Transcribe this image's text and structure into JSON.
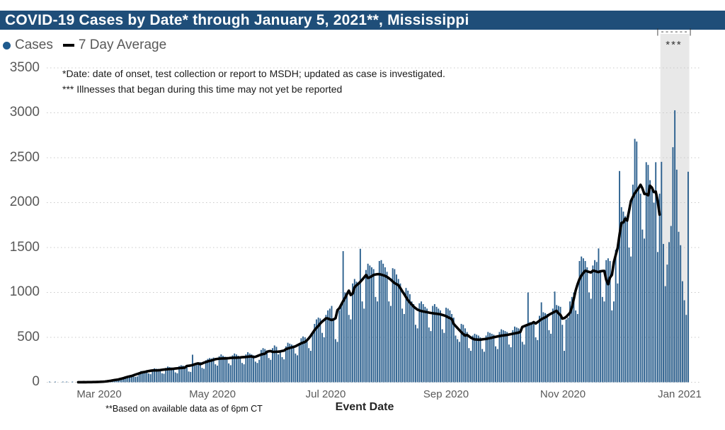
{
  "title_bar": {
    "text": "COVID-19 Cases by Date* through January 5, 2021**, Mississippi"
  },
  "legend": {
    "cases_label": "Cases",
    "avg_label": "7 Day Average"
  },
  "notes": {
    "date_note": "*Date: date of onset, test collection or report to MSDH; updated as case is investigated.",
    "reporting_note": "*** Illnesses that began during this time may not yet be reported",
    "data_note": "**Based on available data as of 6pm CT",
    "shade_bracket": "|------|",
    "shade_marker": "***"
  },
  "x_axis": {
    "title": "Event Date",
    "tick_labels": [
      "Mar 2020",
      "May 2020",
      "Jul 2020",
      "Sep 2020",
      "Nov 2020",
      "Jan 2021"
    ]
  },
  "y_axis": {
    "tick_labels": [
      "3500",
      "3000",
      "2500",
      "2000",
      "1500",
      "1000",
      "500",
      "0"
    ]
  },
  "colors": {
    "bar": "#2D618F",
    "avg_line": "#000000",
    "title_bg": "#1F4E79",
    "shade": "#E8E8E8",
    "gridline": "#C9C9C9",
    "legend_dot": "#1F5B8E",
    "axis_text": "#595959"
  },
  "chart_data": {
    "type": "bar",
    "title": "COVID-19 Cases by Date* through January 5, 2021**, Mississippi",
    "xlabel": "Event Date",
    "ylabel": "Cases",
    "ylim": [
      0,
      3500
    ],
    "y_ticks": [
      0,
      500,
      1000,
      1500,
      2000,
      2500,
      3000,
      3500
    ],
    "grid": "dotted-horizontal",
    "legend_position": "top-left",
    "x_start_date": "2020-02-05",
    "x_end_date": "2021-01-05",
    "x_tick_dates": [
      "2020-03-01",
      "2020-05-01",
      "2020-07-01",
      "2020-09-01",
      "2020-11-01",
      "2021-01-01"
    ],
    "series": [
      {
        "name": "Cases",
        "type": "bar",
        "daily_values": [
          1,
          0,
          0,
          1,
          0,
          0,
          0,
          2,
          0,
          1,
          0,
          0,
          1,
          0,
          0,
          2,
          1,
          0,
          3,
          1,
          0,
          2,
          1,
          3,
          2,
          2,
          4,
          5,
          6,
          8,
          10,
          9,
          12,
          20,
          28,
          30,
          35,
          38,
          30,
          35,
          55,
          68,
          72,
          80,
          85,
          60,
          65,
          110,
          125,
          120,
          128,
          135,
          98,
          90,
          145,
          155,
          150,
          148,
          140,
          100,
          95,
          160,
          175,
          170,
          165,
          155,
          110,
          100,
          180,
          190,
          185,
          180,
          170,
          120,
          115,
          307,
          210,
          205,
          215,
          225,
          160,
          150,
          245,
          260,
          270,
          265,
          275,
          200,
          185,
          290,
          310,
          295,
          285,
          280,
          210,
          190,
          300,
          320,
          310,
          295,
          285,
          215,
          200,
          310,
          335,
          320,
          310,
          300,
          230,
          215,
          250,
          360,
          380,
          370,
          355,
          270,
          250,
          380,
          410,
          395,
          310,
          355,
          280,
          255,
          400,
          440,
          430,
          420,
          410,
          320,
          300,
          430,
          490,
          510,
          500,
          480,
          380,
          350,
          560,
          650,
          700,
          720,
          710,
          550,
          500,
          750,
          800,
          820,
          850,
          700,
          480,
          450,
          800,
          880,
          1460,
          1000,
          980,
          750,
          700,
          1100,
          1150,
          1120,
          1100,
          1486,
          900,
          820,
          1250,
          1320,
          1300,
          1280,
          1260,
          950,
          900,
          1350,
          1360,
          1320,
          1280,
          1230,
          900,
          850,
          1270,
          1260,
          1200,
          1150,
          1100,
          820,
          760,
          1050,
          1020,
          980,
          900,
          870,
          640,
          600,
          880,
          900,
          870,
          840,
          820,
          610,
          570,
          850,
          870,
          840,
          820,
          800,
          590,
          550,
          830,
          820,
          800,
          760,
          720,
          520,
          480,
          450,
          650,
          640,
          600,
          560,
          380,
          350,
          520,
          540,
          530,
          520,
          500,
          370,
          340,
          520,
          560,
          550,
          540,
          530,
          400,
          370,
          560,
          590,
          580,
          570,
          560,
          420,
          390,
          580,
          620,
          610,
          600,
          590,
          450,
          420,
          640,
          1000,
          670,
          660,
          650,
          500,
          470,
          740,
          890,
          780,
          770,
          760,
          580,
          540,
          820,
          1010,
          860,
          850,
          840,
          640,
          350,
          700,
          720,
          900,
          950,
          1000,
          800,
          760,
          1350,
          1400,
          1380,
          1350,
          1280,
          1000,
          930,
          1300,
          1360,
          1340,
          1490,
          1250,
          950,
          900,
          1360,
          1380,
          1350,
          800,
          900,
          1475,
          1100,
          2352,
          1950,
          1900,
          1850,
          1800,
          1500,
          1400,
          2200,
          2710,
          2680,
          2150,
          2100,
          1700,
          1600,
          2450,
          2420,
          2250,
          2150,
          2000,
          2450,
          1450,
          2100,
          2454,
          1540,
          1070,
          1310,
          1560,
          1740,
          2617,
          3028,
          2367,
          1675,
          1526,
          1125,
          913,
          750,
          2344
        ]
      },
      {
        "name": "7 Day Average",
        "type": "line",
        "definition": "7-day centered mean of Cases",
        "drawn_through_date": "2020-12-21",
        "drawn_through_index": 320
      }
    ],
    "highlight_region": {
      "label": "***",
      "start_date": "2020-12-22",
      "end_date": "2021-01-05",
      "start_index": 321,
      "note": "Illnesses that began during this time may not yet be reported"
    }
  }
}
